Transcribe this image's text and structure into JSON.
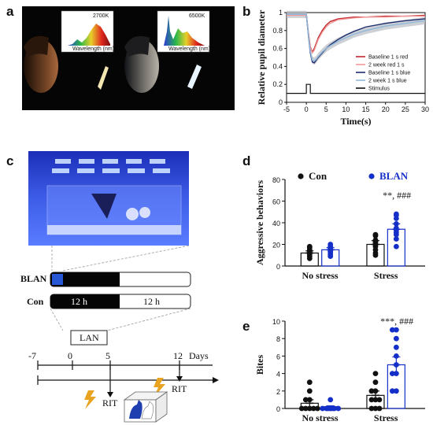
{
  "panels": {
    "a": {
      "label": "a",
      "inset_left": {
        "temp": "2700K",
        "xlabel": "Wavelength (nm)"
      },
      "inset_right": {
        "temp": "6500K",
        "xlabel": "Wavelength (nm)"
      }
    },
    "b": {
      "label": "b"
    },
    "c": {
      "label": "c",
      "blan_label": "BLAN",
      "con_label": "Con",
      "dark_hours": "12 h",
      "light_hours": "12 h",
      "lan_label": "LAN",
      "timeline_ticks": [
        "-7",
        "0",
        "5",
        "12"
      ],
      "days_label": "Days",
      "rit_label": "RIT"
    },
    "d": {
      "label": "d"
    },
    "e": {
      "label": "e"
    }
  },
  "chart_data": [
    {
      "id": "b",
      "type": "line",
      "xlabel": "Time(s)",
      "ylabel": "Relative pupil diameter",
      "xlim": [
        -5,
        30
      ],
      "ylim": [
        0,
        1
      ],
      "xticks": [
        "-5",
        "0",
        "5",
        "10",
        "15",
        "20",
        "25",
        "30"
      ],
      "yticks": [
        "0",
        "0.2",
        "0.4",
        "0.6",
        "0.8",
        "1"
      ],
      "legend_position": "right",
      "x": [
        -5,
        -2,
        0,
        0.5,
        1,
        1.5,
        2,
        2.5,
        3,
        4,
        5,
        6,
        8,
        10,
        12,
        15,
        20,
        25,
        30
      ],
      "series": [
        {
          "name": "Baseline 1 s red",
          "color": "#c0272d",
          "values": [
            0.98,
            0.98,
            0.98,
            0.78,
            0.62,
            0.56,
            0.6,
            0.66,
            0.72,
            0.8,
            0.86,
            0.9,
            0.93,
            0.94,
            0.95,
            0.95,
            0.96,
            0.96,
            0.97
          ]
        },
        {
          "name": "2 week red 1 s",
          "color": "#f19a9a",
          "values": [
            0.97,
            0.97,
            0.97,
            0.77,
            0.61,
            0.55,
            0.58,
            0.64,
            0.7,
            0.78,
            0.84,
            0.88,
            0.92,
            0.93,
            0.94,
            0.95,
            0.95,
            0.96,
            0.96
          ]
        },
        {
          "name": "Baseline 1 s blue",
          "color": "#1f2e6e",
          "values": [
            0.98,
            0.98,
            0.98,
            0.75,
            0.55,
            0.45,
            0.44,
            0.47,
            0.5,
            0.55,
            0.6,
            0.64,
            0.7,
            0.75,
            0.79,
            0.84,
            0.88,
            0.91,
            0.93
          ]
        },
        {
          "name": "2 week 1 s blue",
          "color": "#8fb8dc",
          "values": [
            0.98,
            0.98,
            0.98,
            0.76,
            0.57,
            0.47,
            0.46,
            0.48,
            0.51,
            0.56,
            0.6,
            0.63,
            0.68,
            0.72,
            0.76,
            0.8,
            0.85,
            0.88,
            0.91
          ]
        },
        {
          "name": "Stimulus",
          "color": "#111111",
          "stimulus": {
            "baseline": 0.1,
            "high": 0.2,
            "start": 0,
            "end": 1
          }
        }
      ]
    },
    {
      "id": "d",
      "type": "bar",
      "ylabel": "Aggressive behaviors",
      "ylim": [
        0,
        80
      ],
      "yticks": [
        "0",
        "20",
        "40",
        "60",
        "80"
      ],
      "categories": [
        "No stress",
        "Stress"
      ],
      "legend_position": "top",
      "series": [
        {
          "name": "Con",
          "color": "#111111",
          "values": [
            12,
            20
          ],
          "sem": [
            2,
            3.5
          ],
          "points": [
            [
              7,
              9,
              11,
              12,
              13,
              14,
              15,
              17,
              18
            ],
            [
              10,
              12,
              15,
              18,
              20,
              22,
              23,
              24,
              28,
              29
            ]
          ]
        },
        {
          "name": "BLAN",
          "color": "#1430c8",
          "values": [
            15,
            34
          ],
          "sem": [
            2,
            5
          ],
          "points": [
            [
              9,
              11,
              13,
              14,
              15,
              16,
              17,
              18,
              20
            ],
            [
              18,
              25,
              29,
              31,
              33,
              35,
              39,
              44,
              47,
              48
            ]
          ]
        }
      ],
      "annotation": "**, ###"
    },
    {
      "id": "e",
      "type": "bar",
      "ylabel": "Bites",
      "ylim": [
        0,
        10
      ],
      "yticks": [
        "0",
        "2",
        "4",
        "6",
        "8",
        "10"
      ],
      "categories": [
        "No stress",
        "Stress"
      ],
      "series": [
        {
          "name": "Con",
          "color": "#111111",
          "values": [
            0.6,
            1.5
          ],
          "sem": [
            0.4,
            0.5
          ],
          "points": [
            [
              0,
              0,
              0,
              0,
              0,
              1,
              1,
              2,
              3
            ],
            [
              0,
              0,
              0,
              1,
              1,
              1,
              2,
              2,
              3,
              4
            ]
          ]
        },
        {
          "name": "BLAN",
          "color": "#1430c8",
          "values": [
            0.2,
            5.0
          ],
          "sem": [
            0.1,
            0.9
          ],
          "points": [
            [
              0,
              0,
              0,
              0,
              0,
              0,
              0,
              0,
              1
            ],
            [
              2,
              2,
              4,
              4,
              5,
              6,
              7,
              8,
              9,
              9
            ]
          ]
        }
      ],
      "annotation": "***, ###"
    }
  ]
}
